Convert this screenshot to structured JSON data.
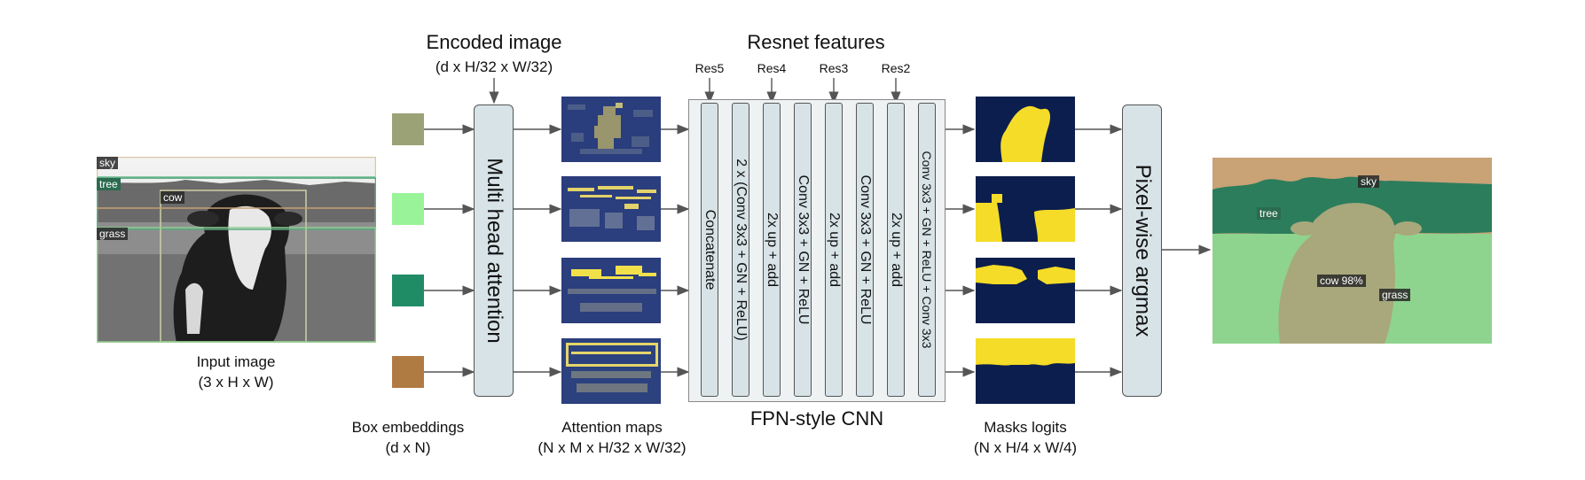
{
  "input": {
    "title": "Input image",
    "shape": "(3 x H x W)",
    "boxes": [
      "sky",
      "tree",
      "cow",
      "grass"
    ]
  },
  "encoded": {
    "title": "Encoded image",
    "shape": "(d x H/32 x W/32)"
  },
  "embeddings": {
    "title": "Box embeddings",
    "shape": "(d x N)",
    "colors": [
      "#9aa276",
      "#99f499",
      "#1f8c66",
      "#b07b42"
    ]
  },
  "attention": {
    "label": "Multi head attention"
  },
  "attention_maps": {
    "title": "Attention maps",
    "shape": "(N x M x H/32 x W/32)"
  },
  "resnet": {
    "title": "Resnet features",
    "levels": [
      "Res5",
      "Res4",
      "Res3",
      "Res2"
    ]
  },
  "fpn": {
    "title": "FPN-style CNN",
    "columns": [
      "Concatenate",
      "2 x (Conv 3x3 + GN + ReLU)",
      "2x up + add",
      "Conv 3x3 + GN + ReLU",
      "2x up + add",
      "Conv 3x3 + GN + ReLU",
      "2x up + add",
      "Conv 3x3 + GN + ReLU + Conv 3x3"
    ]
  },
  "masks": {
    "title": "Masks logits",
    "shape": "(N x H/4 x W/4)"
  },
  "argmax": {
    "label": "Pixel-wise argmax"
  },
  "output": {
    "labels": [
      "sky",
      "tree",
      "cow 98%",
      "grass"
    ]
  }
}
